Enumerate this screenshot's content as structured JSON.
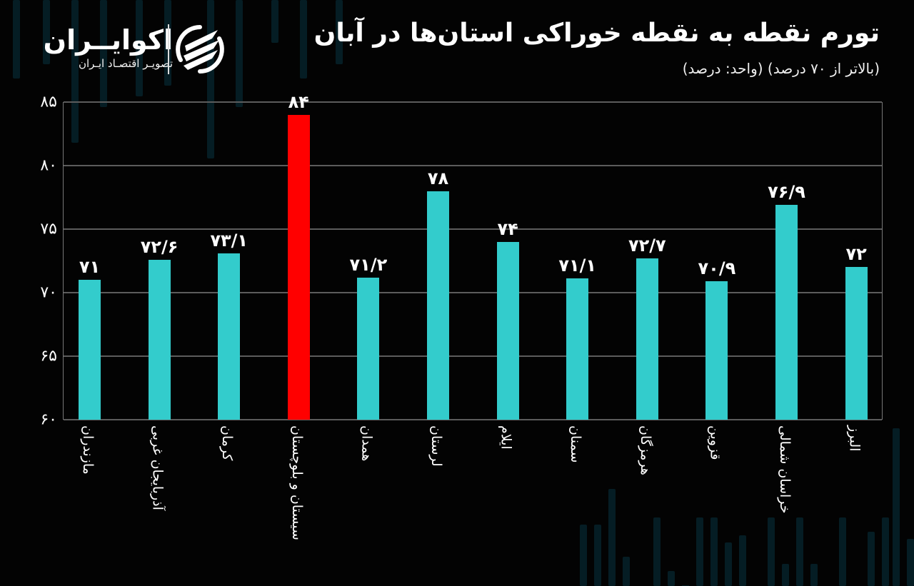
{
  "brand": {
    "name": "اکوایــران",
    "tagline": "تصویـر اقتصـاد ایـران"
  },
  "header": {
    "title": "تورم نقطه به نقطه خوراکی استان‌ها در آبان",
    "subtitle": "(بالاتر از ۷۰ درصد) (واحد: درصد)"
  },
  "colors": {
    "background": "#030303",
    "bar": "#33cccc",
    "highlight": "#ff0000",
    "grid": "#5c5c5c"
  },
  "y_ticks": [
    "۸۵",
    "۸۰",
    "۷۵",
    "۷۰",
    "۶۵",
    "۶۰"
  ],
  "chart_data": {
    "type": "bar",
    "title": "تورم نقطه به نقطه خوراکی استان‌ها در آبان",
    "subtitle": "(بالاتر از ۷۰ درصد) (واحد: درصد)",
    "xlabel": "",
    "ylabel": "",
    "ylim": [
      60,
      85
    ],
    "y_ticks": [
      60,
      65,
      70,
      75,
      80,
      85
    ],
    "grid": true,
    "legend": null,
    "categories": [
      "مازندران",
      "آذربایجان غربی",
      "کرمان",
      "سیستان و بلوچستان",
      "همدان",
      "لرستان",
      "ایلام",
      "سمنان",
      "هرمزگان",
      "قزوین",
      "خراسان شمالی",
      "البرز"
    ],
    "values": [
      71,
      72.6,
      73.1,
      84,
      71.2,
      78,
      74,
      71.1,
      72.7,
      70.9,
      76.9,
      72
    ],
    "value_labels": [
      "۷۱",
      "۷۲/۶",
      "۷۳/۱",
      "۸۴",
      "۷۱/۲",
      "۷۸",
      "۷۴",
      "۷۱/۱",
      "۷۲/۷",
      "۷۰/۹",
      "۷۶/۹",
      "۷۲"
    ],
    "highlight_index": 3
  }
}
